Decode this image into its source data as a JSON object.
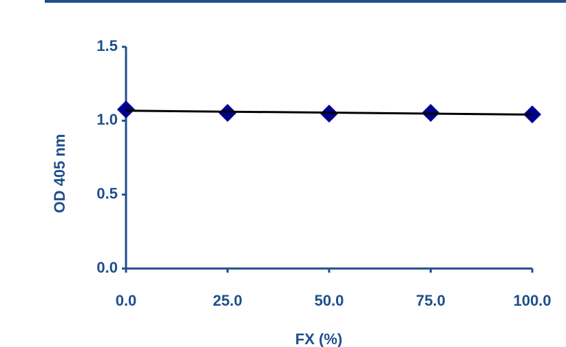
{
  "chart_data": {
    "type": "scatter",
    "x": [
      0,
      25,
      50,
      75,
      100
    ],
    "values": [
      1.076,
      1.053,
      1.048,
      1.053,
      1.043
    ],
    "color": "#00008b",
    "axis_color": "#1f4e8c",
    "trendline": true,
    "trendline_color": "#000000",
    "xlabel": "FX (%)",
    "ylabel": "OD 405 nm",
    "xlim": [
      0,
      100
    ],
    "ylim": [
      0,
      1.5
    ],
    "xticks": [
      {
        "value": 0,
        "label": "0.0"
      },
      {
        "value": 25,
        "label": "25.0"
      },
      {
        "value": 50,
        "label": "50.0"
      },
      {
        "value": 75,
        "label": "75.0"
      },
      {
        "value": 100,
        "label": "100.0"
      }
    ],
    "yticks": [
      {
        "value": 0,
        "label": "0.0"
      },
      {
        "value": 0.5,
        "label": "0.5"
      },
      {
        "value": 1,
        "label": "1.0"
      },
      {
        "value": 1.5,
        "label": "1.5"
      }
    ]
  }
}
